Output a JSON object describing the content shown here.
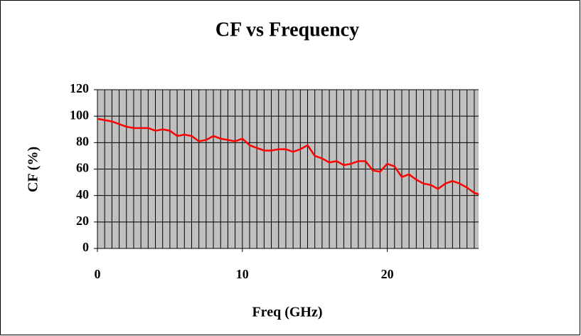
{
  "chart_data": {
    "type": "line",
    "title": "CF vs Frequency",
    "x_label": "Freq (GHz)",
    "y_label": "CF (%)",
    "x": [
      0,
      0.5,
      1,
      1.5,
      2,
      2.5,
      3,
      3.5,
      4,
      4.5,
      5,
      5.5,
      6,
      6.5,
      7,
      7.5,
      8,
      8.5,
      9,
      9.5,
      10,
      10.5,
      11,
      11.5,
      12,
      12.5,
      13,
      13.5,
      14,
      14.5,
      15,
      15.5,
      16,
      16.5,
      17,
      17.5,
      18,
      18.5,
      19,
      19.5,
      20,
      20.5,
      21,
      21.5,
      22,
      22.5,
      23,
      23.5,
      24,
      24.5,
      25,
      25.5,
      26,
      26.3
    ],
    "series": [
      {
        "name": "CF",
        "color": "#ff0000",
        "values": [
          98,
          97,
          96,
          94,
          92,
          91,
          91,
          91,
          89,
          90,
          89,
          85,
          86,
          85,
          81,
          82,
          85,
          83,
          82,
          81,
          83,
          78,
          76,
          74,
          74,
          75,
          75,
          73,
          75,
          78,
          70,
          68,
          65,
          66,
          63,
          64,
          66,
          66,
          59,
          58,
          64,
          62,
          54,
          56,
          52,
          49,
          48,
          45,
          49,
          51,
          49,
          46,
          42,
          41
        ]
      }
    ],
    "xlim": [
      0,
      26.3
    ],
    "xticks": [
      0,
      10,
      20
    ],
    "ylim": [
      0,
      120
    ],
    "yticks": [
      0,
      20,
      40,
      60,
      80,
      100,
      120
    ],
    "grid": true,
    "x_minor_grid": 0.5,
    "plot_background": "#c0c0c0"
  }
}
